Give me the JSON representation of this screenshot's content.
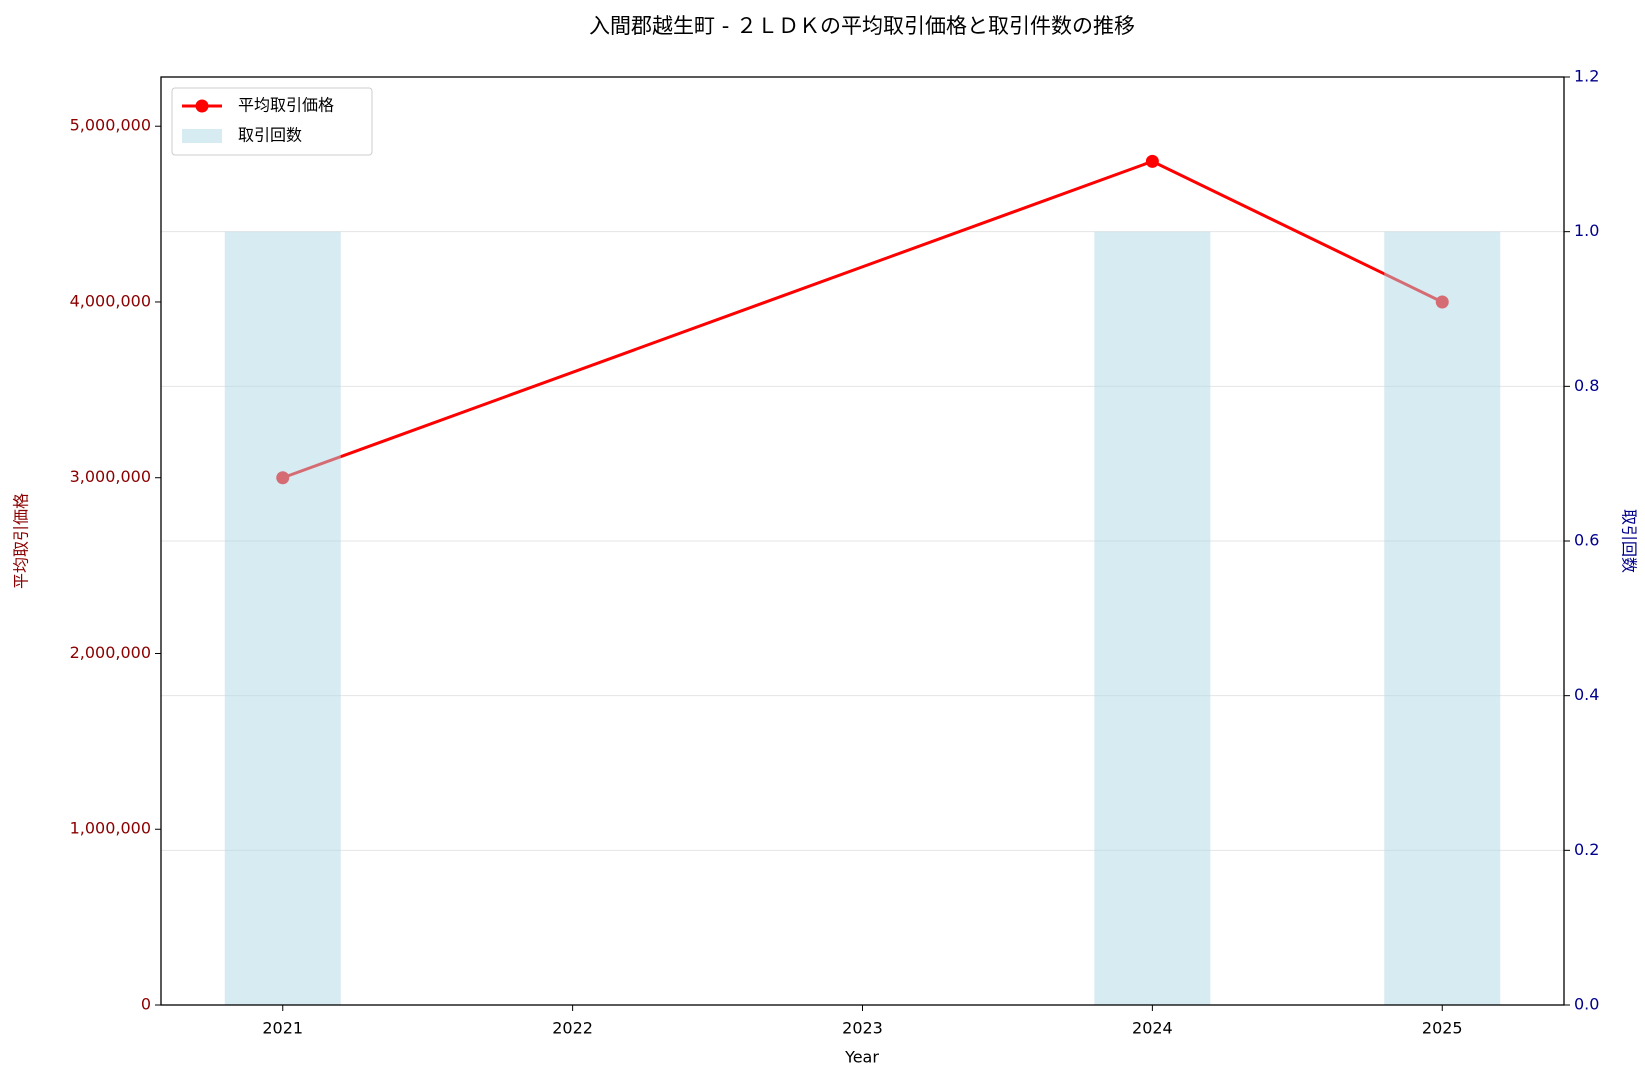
{
  "chart_data": {
    "type": "combo",
    "title": "入間郡越生町 - ２ＬＤＫの平均取引価格と取引件数の推移",
    "x_label": "Year",
    "y_label": "平均取引価格",
    "y2_label": "取引回数",
    "x": [
      2021,
      2024,
      2025
    ],
    "series": [
      {
        "name": "平均取引価格",
        "type": "line",
        "color": "#ff0000",
        "values": [
          3000000,
          4800000,
          4000000
        ]
      },
      {
        "name": "取引回数",
        "type": "bar",
        "color": "#add8e6",
        "axis": "y2",
        "values": [
          1,
          1,
          1
        ]
      }
    ],
    "xlim": [
      2020.58,
      2025.42
    ],
    "xticks": [
      2021,
      2022,
      2023,
      2024,
      2025
    ],
    "ylim": [
      0,
      5280000
    ],
    "yticks": [
      0,
      {
        "value": 1000000,
        "label": "1,000,000"
      },
      {
        "value": 2000000,
        "label": "2,000,000"
      },
      {
        "value": 3000000,
        "label": "3,000,000"
      },
      {
        "value": 4000000,
        "label": "4,000,000"
      },
      {
        "value": 5000000,
        "label": "5,000,000"
      }
    ],
    "y2lim": [
      0,
      1.2
    ],
    "y2ticks": [
      {
        "value": 0,
        "label": "0.0"
      },
      {
        "value": 0.2,
        "label": "0.2"
      },
      {
        "value": 0.4,
        "label": "0.4"
      },
      {
        "value": 0.6,
        "label": "0.6"
      },
      {
        "value": 0.8,
        "label": "0.8"
      },
      {
        "value": 1,
        "label": "1.0"
      },
      {
        "value": 1.2,
        "label": "1.2"
      }
    ],
    "grid": true,
    "legend": "upper-left"
  }
}
